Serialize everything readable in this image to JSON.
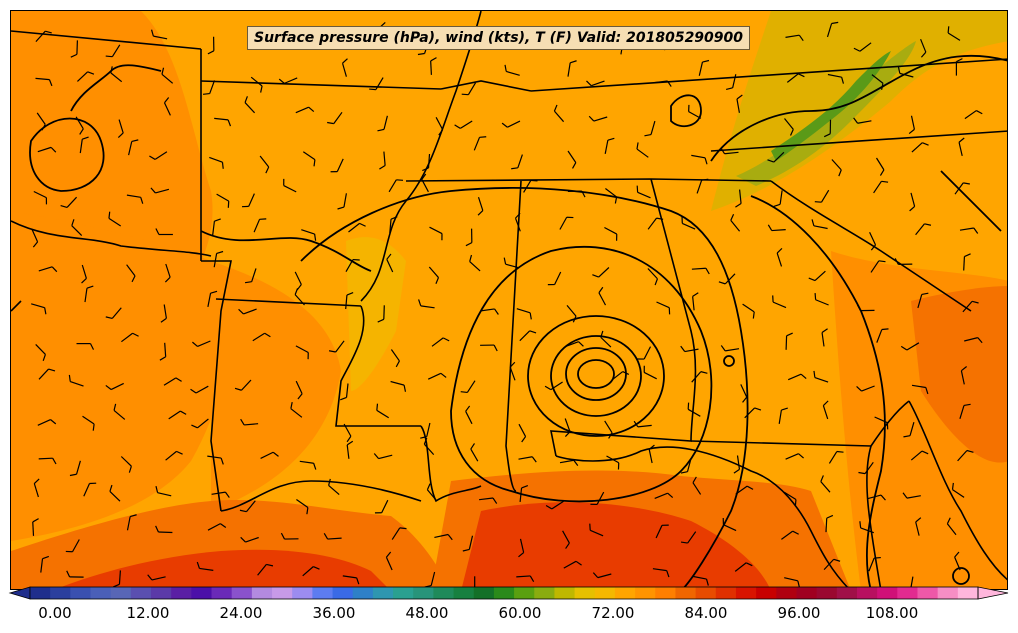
{
  "title": "Surface pressure (hPa), wind (kts), T (F) Valid: 201805290900",
  "colorbar": {
    "tick_labels": [
      "0.00",
      "12.00",
      "24.00",
      "36.00",
      "48.00",
      "60.00",
      "72.00",
      "84.00",
      "96.00",
      "108.00"
    ],
    "colors": [
      "#1f2e8c",
      "#2b3f9e",
      "#3a50b0",
      "#4a5fb8",
      "#5866b6",
      "#5a4fb0",
      "#5b3aa8",
      "#5a1fa4",
      "#4b10a8",
      "#6a2ab8",
      "#8a52cc",
      "#b38ae0",
      "#c79ae8",
      "#9c8cf0",
      "#5d7cf0",
      "#3a6ae6",
      "#2e80c8",
      "#2e96b0",
      "#2aa090",
      "#28947a",
      "#1f8a5a",
      "#178040",
      "#137028",
      "#2a8a1a",
      "#5aa010",
      "#8aac10",
      "#bfb800",
      "#e6c000",
      "#f5b800",
      "#ffa500",
      "#ff9400",
      "#ff7f00",
      "#f06600",
      "#e84c00",
      "#e03000",
      "#d81400",
      "#c80000",
      "#b00010",
      "#a00020",
      "#9a0830",
      "#a01048",
      "#b81060",
      "#d01078",
      "#e22a90",
      "#ee58a8",
      "#f68ec4",
      "#ffb6dc"
    ]
  },
  "map": {
    "domain": "Southeastern United States",
    "fill_colors": {
      "base": "#ffa500",
      "warm": "#ff8f00",
      "warmer": "#f57200",
      "hot": "#e83c00",
      "cool": "#e0b000",
      "cooler": "#a8ac10",
      "cold": "#5a9a18",
      "state_lines": "#000000",
      "isobars": "#000000",
      "wind_barbs": "#000000"
    }
  }
}
